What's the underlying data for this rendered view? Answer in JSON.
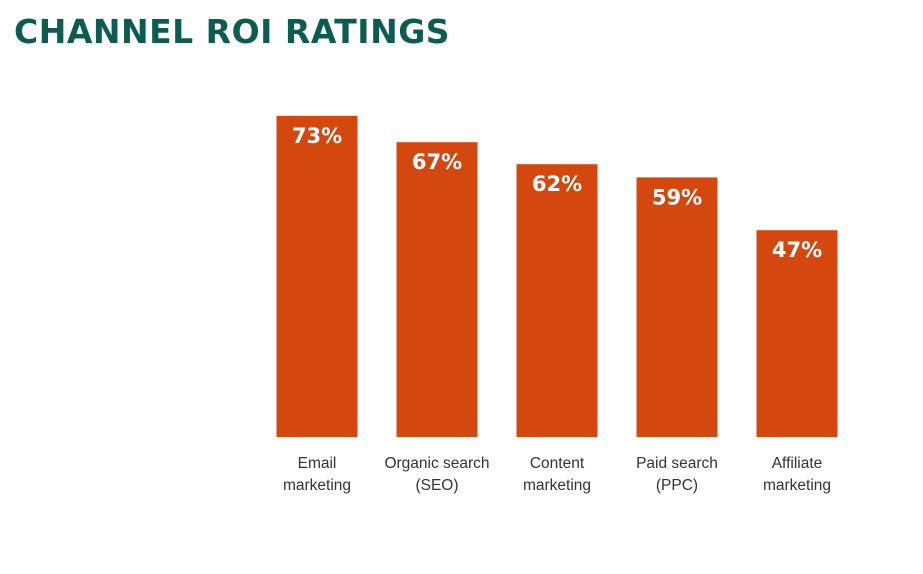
{
  "title": "CHANNEL ROI RATINGS",
  "colors": {
    "title": "#0d5c52",
    "bar": "#d4470f",
    "bar_label": "#ffffff",
    "category_label": "#333333"
  },
  "chart_data": {
    "type": "bar",
    "title": "CHANNEL ROI RATINGS",
    "categories": [
      [
        "Email",
        "marketing"
      ],
      [
        "Organic search",
        "(SEO)"
      ],
      [
        "Content",
        "marketing"
      ],
      [
        "Paid search",
        "(PPC)"
      ],
      [
        "Affiliate",
        "marketing"
      ]
    ],
    "values": [
      73,
      67,
      62,
      59,
      47
    ],
    "value_labels": [
      "73%",
      "67%",
      "62%",
      "59%",
      "47%"
    ],
    "unit": "%",
    "xlabel": "",
    "ylabel": "",
    "ylim": [
      0,
      100
    ],
    "grid": false,
    "axes_visible": false
  }
}
